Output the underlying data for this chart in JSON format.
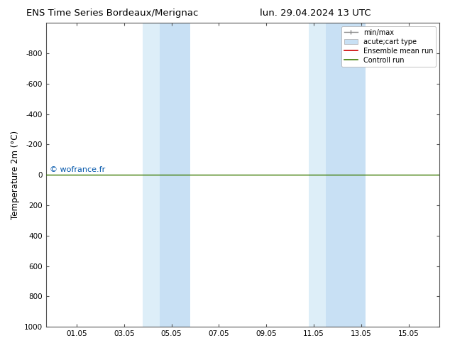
{
  "title_left": "ENS Time Series Bordeaux/Merignac",
  "title_right": "lun. 29.04.2024 13 UTC",
  "ylabel": "Temperature 2m (°C)",
  "ylim_top": -1000,
  "ylim_bottom": 1000,
  "yticks": [
    -800,
    -600,
    -400,
    -200,
    0,
    200,
    400,
    600,
    800,
    1000
  ],
  "xtick_labels": [
    "01.05",
    "03.05",
    "05.05",
    "07.05",
    "09.05",
    "11.05",
    "13.05",
    "15.05"
  ],
  "xtick_positions": [
    1,
    3,
    5,
    7,
    9,
    11,
    13,
    15
  ],
  "xlim": [
    -0.3,
    16.3
  ],
  "shaded_regions": [
    [
      3.8,
      4.5
    ],
    [
      4.5,
      5.8
    ],
    [
      10.8,
      11.5
    ],
    [
      11.5,
      13.2
    ]
  ],
  "shaded_colors": [
    "#ddeef8",
    "#c8e0f4",
    "#ddeef8",
    "#c8e0f4"
  ],
  "horizontal_line_y": 0,
  "line_color_control": "#3a7a00",
  "line_color_ensemble": "#cc0000",
  "watermark": "© wofrance.fr",
  "watermark_color": "#0055aa",
  "background_color": "#ffffff"
}
